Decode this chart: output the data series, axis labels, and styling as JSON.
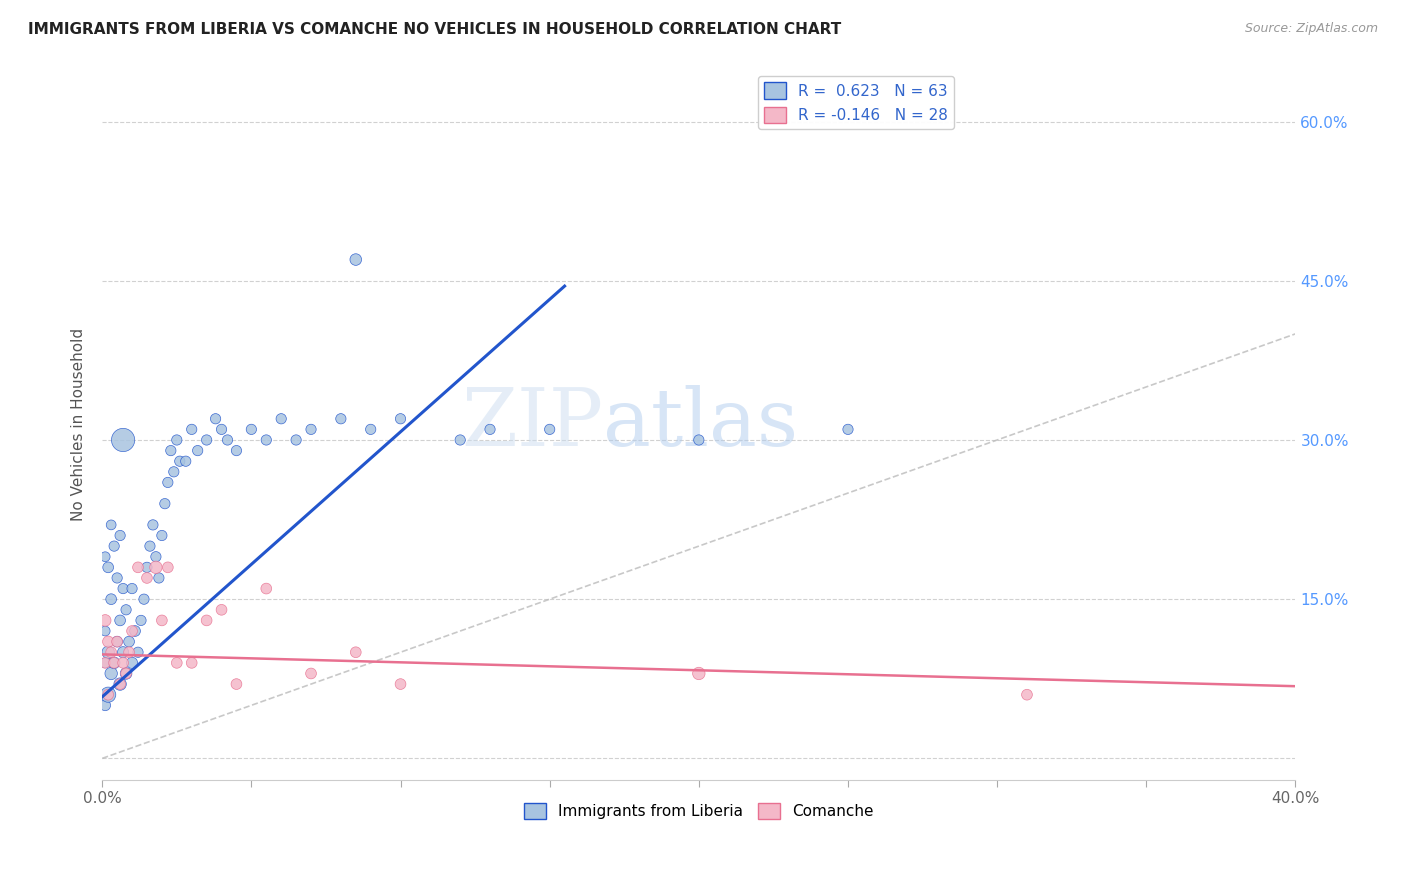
{
  "title": "IMMIGRANTS FROM LIBERIA VS COMANCHE NO VEHICLES IN HOUSEHOLD CORRELATION CHART",
  "source": "Source: ZipAtlas.com",
  "ylabel": "No Vehicles in Household",
  "xlabel": "",
  "xlim": [
    0.0,
    0.4
  ],
  "ylim": [
    -0.02,
    0.65
  ],
  "yticks": [
    0.0,
    0.15,
    0.3,
    0.45,
    0.6
  ],
  "ytick_labels": [
    "",
    "15.0%",
    "30.0%",
    "45.0%",
    "60.0%"
  ],
  "xticks": [
    0.0,
    0.05,
    0.1,
    0.15,
    0.2,
    0.25,
    0.3,
    0.35,
    0.4
  ],
  "xtick_labels": [
    "0.0%",
    "",
    "",
    "",
    "",
    "",
    "",
    "",
    "40.0%"
  ],
  "right_ytick_labels": [
    "",
    "15.0%",
    "30.0%",
    "45.0%",
    "60.0%"
  ],
  "legend_r1": "R =  0.623   N = 63",
  "legend_r2": "R = -0.146   N = 28",
  "series1_color": "#a8c4e0",
  "series2_color": "#f4b8c8",
  "trendline1_color": "#2255cc",
  "trendline2_color": "#e87090",
  "refline_color": "#bbbbbb",
  "watermark_zip": "ZIP",
  "watermark_atlas": "atlas",
  "blue_line_x": [
    0.0,
    0.155
  ],
  "blue_line_y": [
    0.058,
    0.445
  ],
  "pink_line_x": [
    0.0,
    0.4
  ],
  "pink_line_y": [
    0.098,
    0.068
  ],
  "ref_line_x": [
    0.0,
    0.65
  ],
  "ref_line_y": [
    0.0,
    0.65
  ],
  "liberia_x": [
    0.001,
    0.001,
    0.001,
    0.001,
    0.002,
    0.002,
    0.002,
    0.003,
    0.003,
    0.003,
    0.004,
    0.004,
    0.005,
    0.005,
    0.006,
    0.006,
    0.006,
    0.007,
    0.007,
    0.008,
    0.008,
    0.009,
    0.01,
    0.01,
    0.011,
    0.012,
    0.013,
    0.014,
    0.015,
    0.016,
    0.017,
    0.018,
    0.019,
    0.02,
    0.021,
    0.022,
    0.023,
    0.024,
    0.025,
    0.026,
    0.028,
    0.03,
    0.032,
    0.035,
    0.038,
    0.04,
    0.042,
    0.045,
    0.05,
    0.055,
    0.06,
    0.065,
    0.07,
    0.08,
    0.09,
    0.1,
    0.12,
    0.15,
    0.2,
    0.25,
    0.007,
    0.085,
    0.13
  ],
  "liberia_y": [
    0.05,
    0.09,
    0.12,
    0.19,
    0.06,
    0.1,
    0.18,
    0.08,
    0.15,
    0.22,
    0.09,
    0.2,
    0.11,
    0.17,
    0.07,
    0.13,
    0.21,
    0.1,
    0.16,
    0.08,
    0.14,
    0.11,
    0.09,
    0.16,
    0.12,
    0.1,
    0.13,
    0.15,
    0.18,
    0.2,
    0.22,
    0.19,
    0.17,
    0.21,
    0.24,
    0.26,
    0.29,
    0.27,
    0.3,
    0.28,
    0.28,
    0.31,
    0.29,
    0.3,
    0.32,
    0.31,
    0.3,
    0.29,
    0.31,
    0.3,
    0.32,
    0.3,
    0.31,
    0.32,
    0.31,
    0.32,
    0.3,
    0.31,
    0.3,
    0.31,
    0.3,
    0.47,
    0.31
  ],
  "liberia_size": [
    60,
    50,
    50,
    50,
    120,
    80,
    60,
    80,
    60,
    50,
    70,
    55,
    60,
    55,
    80,
    60,
    55,
    65,
    55,
    70,
    55,
    60,
    65,
    55,
    60,
    55,
    55,
    55,
    55,
    55,
    55,
    55,
    55,
    55,
    55,
    55,
    55,
    55,
    55,
    55,
    55,
    55,
    55,
    55,
    55,
    55,
    55,
    55,
    55,
    55,
    55,
    55,
    55,
    55,
    55,
    55,
    55,
    55,
    55,
    55,
    280,
    70,
    55
  ],
  "comanche_x": [
    0.001,
    0.001,
    0.002,
    0.002,
    0.003,
    0.004,
    0.005,
    0.006,
    0.007,
    0.008,
    0.009,
    0.01,
    0.012,
    0.015,
    0.018,
    0.02,
    0.022,
    0.025,
    0.03,
    0.035,
    0.04,
    0.045,
    0.055,
    0.07,
    0.085,
    0.1,
    0.2,
    0.31
  ],
  "comanche_y": [
    0.13,
    0.09,
    0.11,
    0.06,
    0.1,
    0.09,
    0.11,
    0.07,
    0.09,
    0.08,
    0.1,
    0.12,
    0.18,
    0.17,
    0.18,
    0.13,
    0.18,
    0.09,
    0.09,
    0.13,
    0.14,
    0.07,
    0.16,
    0.08,
    0.1,
    0.07,
    0.08,
    0.06
  ],
  "comanche_size": [
    70,
    60,
    65,
    60,
    60,
    60,
    60,
    60,
    60,
    60,
    60,
    60,
    60,
    60,
    80,
    60,
    60,
    60,
    60,
    60,
    60,
    60,
    60,
    60,
    60,
    60,
    80,
    60
  ]
}
